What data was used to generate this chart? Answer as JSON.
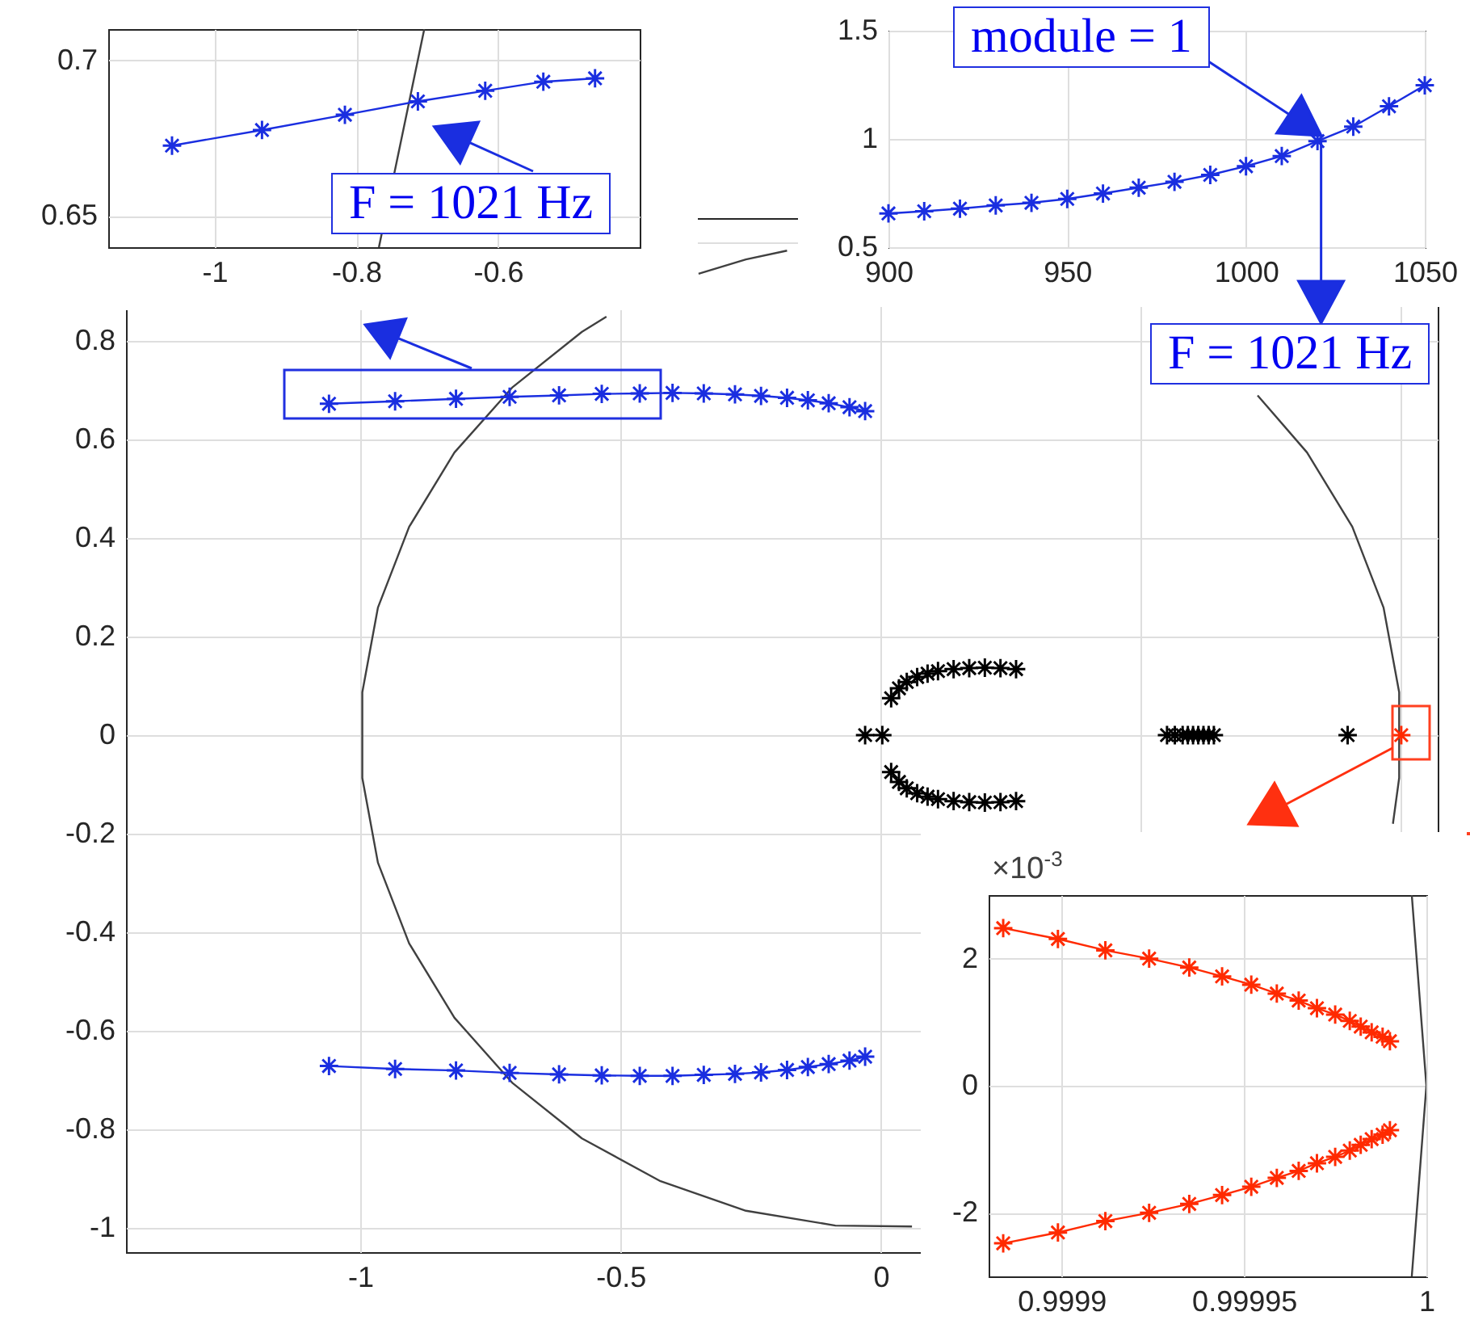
{
  "chart_data": [
    {
      "type": "line",
      "xlim": [
        -1.15,
        -0.4
      ],
      "ylim": [
        0.64,
        0.71
      ],
      "xticks": [
        -1,
        -0.8,
        -0.6
      ],
      "yticks": [
        0.65,
        0.7
      ],
      "grid": true,
      "marker": "star",
      "annotations": [
        {
          "text": "F = 1021 Hz",
          "x": -0.713,
          "y": 0.687
        }
      ],
      "series": [
        {
          "marker": "none",
          "color": "#404040",
          "x": [
            -0.704,
            -0.768
          ],
          "values": [
            0.71,
            0.64
          ]
        },
        {
          "color": "#1a2ee0",
          "x": [
            -1.06,
            -0.933,
            -0.816,
            -0.713,
            -0.618,
            -0.536,
            -0.463
          ],
          "values": [
            0.6726,
            0.6776,
            0.6825,
            0.6868,
            0.6902,
            0.6931,
            0.6942
          ]
        }
      ]
    },
    {
      "type": "line",
      "xlim": [
        900,
        1050
      ],
      "ylim": [
        0.5,
        1.5
      ],
      "xticks": [
        900,
        950,
        1000,
        1050
      ],
      "yticks": [
        0.5,
        1,
        1.5
      ],
      "grid": true,
      "marker": "star",
      "annotations": [
        "module = 1",
        {
          "text": "F = 1021 Hz",
          "x": 1021,
          "y": 1
        }
      ],
      "series": [
        {
          "color": "#1a2ee0",
          "x": [
            900,
            910,
            920,
            930,
            940,
            950,
            960,
            970,
            980,
            990,
            1000,
            1010,
            1020,
            1030,
            1040,
            1050
          ],
          "values": [
            0.656,
            0.666,
            0.678,
            0.693,
            0.705,
            0.723,
            0.748,
            0.775,
            0.802,
            0.834,
            0.874,
            0.921,
            0.99,
            1.057,
            1.151,
            1.248
          ]
        }
      ]
    },
    {
      "type": "line",
      "xlim": [
        -1.45,
        1.07
      ],
      "ylim": [
        -1.05,
        1.05
      ],
      "xticks": [
        -1,
        -0.5,
        0,
        {
          "value": 0.5,
          "label": null
        },
        {
          "value": 1,
          "label": null
        }
      ],
      "yticks": [
        -1,
        -0.8,
        -0.6,
        -0.4,
        -0.2,
        0,
        0.2,
        0.4,
        0.6,
        0.8,
        {
          "value": 1,
          "label": null
        }
      ],
      "grid": true,
      "marker": "star",
      "series": [
        {
          "marker": "none",
          "color": "#404040",
          "x": [
            0.984,
            0.996,
            0.996,
            0.966,
            0.906,
            0.819,
            0.724
          ],
          "values": [
            -0.18,
            -0.087,
            0.087,
            0.259,
            0.423,
            0.574,
            0.69
          ]
        },
        {
          "marker": "none",
          "color": "#404040",
          "x": [
            -0.18,
            -0.259,
            -0.35
          ],
          "values": [
            0.984,
            0.966,
            0.937
          ]
        },
        {
          "marker": "none",
          "color": "#404040",
          "x": [
            -0.527,
            -0.574,
            -0.707,
            -0.819,
            -0.906,
            -0.966,
            -0.996,
            -0.996,
            -0.966,
            -0.906,
            -0.819,
            -0.707,
            -0.574,
            -0.423,
            -0.259,
            -0.087,
            0.06
          ],
          "values": [
            0.85,
            0.819,
            0.707,
            0.574,
            0.423,
            0.259,
            0.087,
            -0.087,
            -0.259,
            -0.423,
            -0.574,
            -0.707,
            -0.819,
            -0.906,
            -0.966,
            -0.996,
            -0.998
          ]
        },
        {
          "color": "#1a2ee0",
          "x": [
            -1.06,
            -0.933,
            -0.816,
            -0.713,
            -0.618,
            -0.536,
            -0.463,
            -0.4,
            -0.34,
            -0.28,
            -0.23,
            -0.18,
            -0.14,
            -0.1,
            -0.06,
            -0.03
          ],
          "values": [
            0.673,
            0.678,
            0.683,
            0.687,
            0.69,
            0.693,
            0.694,
            0.695,
            0.694,
            0.692,
            0.689,
            0.685,
            0.68,
            0.674,
            0.666,
            0.658
          ]
        },
        {
          "color": "#1a2ee0",
          "x": [
            -1.06,
            -0.933,
            -0.816,
            -0.713,
            -0.618,
            -0.536,
            -0.463,
            -0.4,
            -0.34,
            -0.28,
            -0.23,
            -0.18,
            -0.14,
            -0.1,
            -0.06,
            -0.03
          ],
          "values": [
            -0.672,
            -0.678,
            -0.681,
            -0.686,
            -0.689,
            -0.691,
            -0.692,
            -0.692,
            -0.69,
            -0.688,
            -0.685,
            -0.68,
            -0.674,
            -0.668,
            -0.661,
            -0.653
          ]
        },
        {
          "type": "scatter",
          "color": "#000000",
          "x": [
            -0.03,
            0.003,
            0.02,
            0.035,
            0.05,
            0.07,
            0.09,
            0.11,
            0.14,
            0.17,
            0.2,
            0.23,
            0.26,
            0.02,
            0.035,
            0.05,
            0.07,
            0.09,
            0.11,
            0.14,
            0.17,
            0.2,
            0.23,
            0.26,
            0.55,
            0.565,
            0.58,
            0.59,
            0.6,
            0.61,
            0.62,
            0.63,
            0.64,
            0.897
          ],
          "values": [
            0,
            0,
            0.075,
            0.095,
            0.108,
            0.118,
            0.125,
            0.13,
            0.134,
            0.136,
            0.137,
            0.136,
            0.134,
            -0.075,
            -0.095,
            -0.108,
            -0.118,
            -0.125,
            -0.13,
            -0.134,
            -0.136,
            -0.137,
            -0.136,
            -0.134,
            0,
            0,
            0,
            0,
            0,
            0,
            0,
            0,
            0,
            0
          ]
        },
        {
          "type": "scatter",
          "color": "#ff2a00",
          "x": [
            1
          ],
          "values": [
            0
          ]
        }
      ]
    },
    {
      "type": "line",
      "xlim": [
        0.99988,
        1
      ],
      "ylim": [
        -3,
        3
      ],
      "xticks": [
        0.9999,
        0.99995,
        1
      ],
      "yticks": [
        -2,
        0,
        2
      ],
      "grid": true,
      "marker": "star",
      "annotations": [
        "×10$^{-3}$"
      ],
      "series": [
        {
          "marker": "none",
          "color": "#404040",
          "x": [
            0.999996,
            1,
            0.999996
          ],
          "values": [
            -3,
            0,
            3
          ]
        },
        {
          "color": "#ff2a00",
          "x": [
            0.999884,
            0.999899,
            0.999912,
            0.999924,
            0.999935,
            0.999944,
            0.999952,
            0.999959,
            0.999965,
            0.99997,
            0.999975,
            0.999979,
            0.999982,
            0.999985,
            0.999988,
            0.99999
          ],
          "values": [
            2.48,
            2.31,
            2.13,
            2.0,
            1.86,
            1.72,
            1.59,
            1.45,
            1.34,
            1.22,
            1.12,
            1.02,
            0.93,
            0.84,
            0.77,
            0.7
          ]
        },
        {
          "color": "#ff2a00",
          "x": [
            0.999884,
            0.999899,
            0.999912,
            0.999924,
            0.999935,
            0.999944,
            0.999952,
            0.999959,
            0.999965,
            0.99997,
            0.999975,
            0.999979,
            0.999982,
            0.999985,
            0.999988,
            0.99999
          ],
          "values": [
            -2.48,
            -2.31,
            -2.13,
            -2.0,
            -1.86,
            -1.72,
            -1.59,
            -1.45,
            -1.34,
            -1.22,
            -1.12,
            -1.02,
            -0.93,
            -0.84,
            -0.77,
            -0.7
          ]
        }
      ]
    }
  ]
}
